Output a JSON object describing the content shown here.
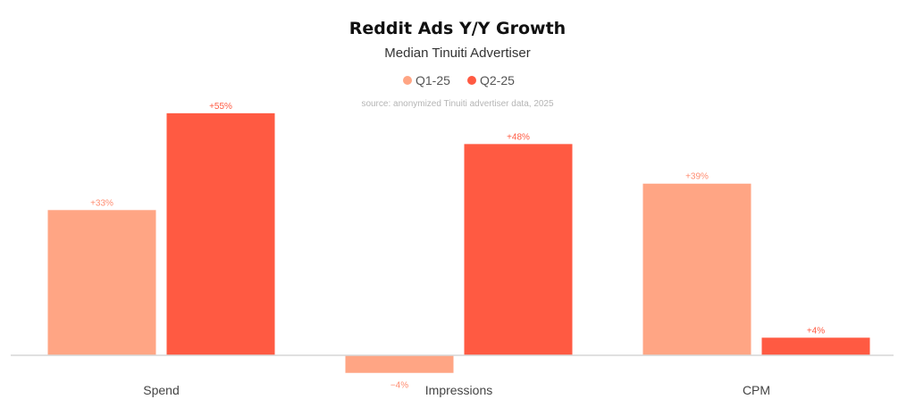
{
  "chart_data": {
    "type": "bar",
    "title": "Reddit Ads Y/Y Growth",
    "subtitle": "Median Tinuiti Advertiser",
    "source": "source: anonymized Tinuiti advertiser data, 2025",
    "categories": [
      "Spend",
      "Impressions",
      "CPM"
    ],
    "series": [
      {
        "name": "Q1-25",
        "color": "#FFA584",
        "values": [
          33,
          -4,
          39
        ],
        "labels": [
          "+33%",
          "−4%",
          "+39%"
        ]
      },
      {
        "name": "Q2-25",
        "color": "#FF5A42",
        "values": [
          55,
          48,
          4
        ],
        "labels": [
          "+55%",
          "+48%",
          "+4%"
        ]
      }
    ],
    "xlabel": "",
    "ylabel": "",
    "ylim": [
      -5,
      56
    ],
    "grid": false,
    "legend": "top-center"
  }
}
